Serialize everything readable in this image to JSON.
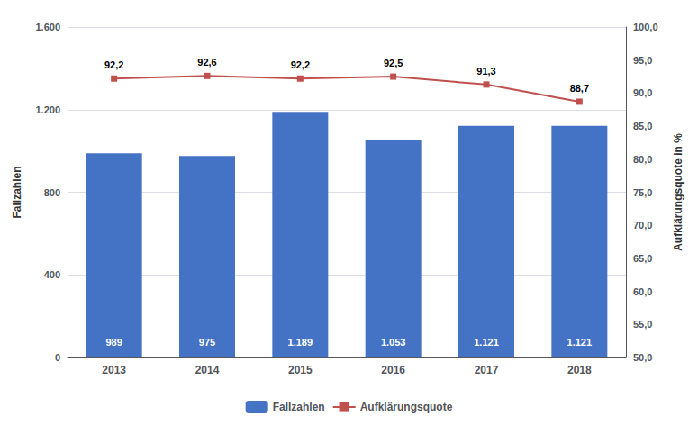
{
  "chart_data": {
    "type": "bar",
    "categories": [
      "2013",
      "2014",
      "2015",
      "2016",
      "2017",
      "2018"
    ],
    "series": [
      {
        "name": "Fallzahlen",
        "type": "bar",
        "color": "#4472C4",
        "values": [
          989,
          975,
          1189,
          1053,
          1121,
          1121
        ],
        "value_labels": [
          "989",
          "975",
          "1.189",
          "1.053",
          "1.121",
          "1.121"
        ]
      },
      {
        "name": "Aufklärungsquote",
        "type": "line",
        "axis": "y2",
        "color": "#C0504D",
        "marker": "square",
        "values": [
          92.2,
          92.6,
          92.2,
          92.5,
          91.3,
          88.7
        ],
        "value_labels": [
          "92,2",
          "92,6",
          "92,2",
          "92,5",
          "91,3",
          "88,7"
        ]
      }
    ],
    "ylabel": "Fallzahlen",
    "y2label": "Aufklärungsquote in %",
    "ylim": [
      0,
      1600
    ],
    "yticks": [
      0,
      400,
      800,
      {
        "value": 1200,
        "label": "1.200"
      },
      {
        "value": 1600,
        "label": "1.600"
      }
    ],
    "y2lim": [
      50.0,
      100.0
    ],
    "y2ticks": [
      {
        "value": 50.0,
        "label": "50,0"
      },
      {
        "value": 55.0,
        "label": "55,0"
      },
      {
        "value": 60.0,
        "label": "60,0"
      },
      {
        "value": 65.0,
        "label": "65,0"
      },
      {
        "value": 70.0,
        "label": "70,0"
      },
      {
        "value": 75.0,
        "label": "75,0"
      },
      {
        "value": 80.0,
        "label": "80,0"
      },
      {
        "value": 85.0,
        "label": "85,0"
      },
      {
        "value": 90.0,
        "label": "90,0"
      },
      {
        "value": 95.0,
        "label": "95,0"
      },
      {
        "value": 100.0,
        "label": "100,0"
      }
    ],
    "grid": true,
    "legend": "bottom",
    "data_labels": true
  }
}
